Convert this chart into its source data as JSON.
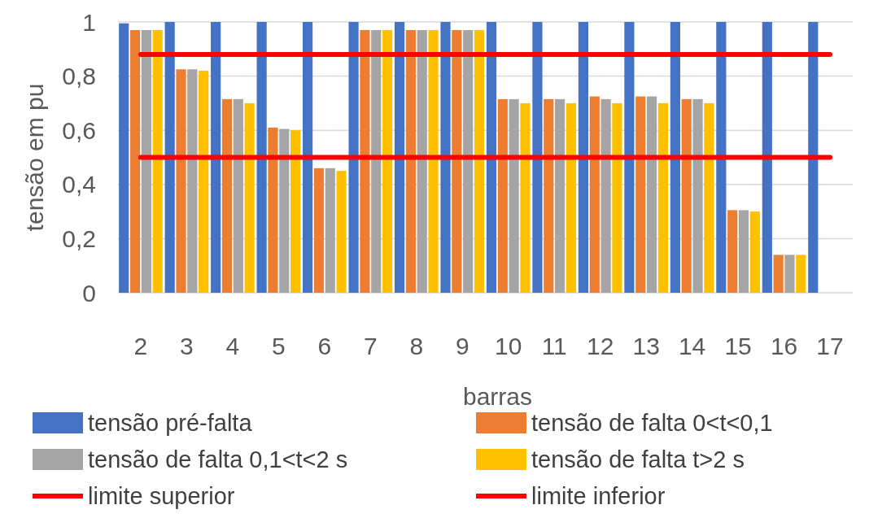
{
  "chart_data": {
    "type": "bar",
    "xlabel": "barras",
    "ylabel": "tensão em pu",
    "categories": [
      "2",
      "3",
      "4",
      "5",
      "6",
      "7",
      "8",
      "9",
      "10",
      "11",
      "12",
      "13",
      "14",
      "15",
      "16",
      "17"
    ],
    "series": [
      {
        "name": "tensão pré-falta",
        "color": "#4472c4",
        "values": [
          0.995,
          1,
          1,
          1,
          1,
          1,
          1,
          1,
          1,
          1,
          1,
          1,
          1,
          1,
          1,
          1
        ]
      },
      {
        "name": "tensão de falta 0<t<0,1",
        "color": "#ed7d31",
        "values": [
          0.97,
          0.825,
          0.715,
          0.61,
          0.46,
          0.97,
          0.97,
          0.97,
          0.715,
          0.715,
          0.725,
          0.725,
          0.715,
          0.305,
          0.14,
          null
        ]
      },
      {
        "name": "tensão de falta 0,1<t<2 s",
        "color": "#a5a5a5",
        "values": [
          0.97,
          0.825,
          0.715,
          0.605,
          0.46,
          0.97,
          0.97,
          0.97,
          0.715,
          0.715,
          0.715,
          0.725,
          0.715,
          0.305,
          0.14,
          null
        ]
      },
      {
        "name": "tensão de falta t>2 s",
        "color": "#ffc000",
        "values": [
          0.97,
          0.82,
          0.7,
          0.6,
          0.45,
          0.97,
          0.97,
          0.97,
          0.7,
          0.7,
          0.7,
          0.7,
          0.7,
          0.3,
          0.14,
          null
        ]
      },
      {
        "name": "limite superior",
        "type": "line",
        "color": "#ff0000",
        "values": [
          0.88,
          0.88,
          0.88,
          0.88,
          0.88,
          0.88,
          0.88,
          0.88,
          0.88,
          0.88,
          0.88,
          0.88,
          0.88,
          0.88,
          0.88,
          0.88
        ]
      },
      {
        "name": "limite inferior",
        "type": "line",
        "color": "#ff0000",
        "values": [
          0.5,
          0.5,
          0.5,
          0.5,
          0.5,
          0.5,
          0.5,
          0.5,
          0.5,
          0.5,
          0.5,
          0.5,
          0.5,
          0.5,
          0.5,
          0.5
        ]
      }
    ],
    "ylim": [
      0,
      1
    ],
    "yticks": [
      0,
      {
        "value": 0.2,
        "label": "0,2"
      },
      {
        "value": 0.4,
        "label": "0,4"
      },
      {
        "value": 0.6,
        "label": "0,6"
      },
      {
        "value": 0.8,
        "label": "0,8"
      },
      1
    ],
    "grid": "y",
    "legend": "bottom"
  }
}
